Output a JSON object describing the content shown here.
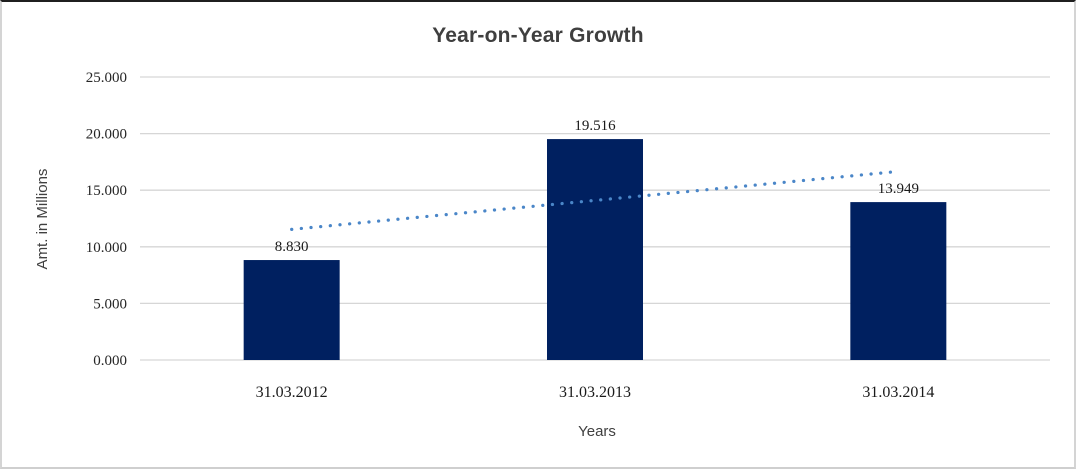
{
  "chart_data": {
    "type": "bar",
    "title": "Year-on-Year Growth",
    "xlabel": "Years",
    "ylabel": "Amt. in Millions",
    "categories": [
      "31.03.2012",
      "31.03.2013",
      "31.03.2014"
    ],
    "values": [
      8.83,
      19.516,
      13.949
    ],
    "data_labels": [
      "8.830",
      "19.516",
      "13.949"
    ],
    "ylim": [
      0,
      25
    ],
    "y_ticks": [
      0,
      5,
      10,
      15,
      20,
      25
    ],
    "y_tick_labels": [
      "0.000",
      "5.000",
      "10.000",
      "15.000",
      "20.000",
      "25.000"
    ],
    "grid": true,
    "legend": false,
    "trendline": {
      "type": "linear",
      "style": "dotted",
      "start_value": 11.54,
      "end_value": 16.66
    },
    "colors": {
      "bar": "#002060",
      "gridline": "#d6d6d6",
      "axis_line": "#d6d6d6",
      "trendline": "#4a86c8",
      "title_text": "#3f3f3f",
      "axis_title_text": "#404040",
      "tick_text": "#262626"
    }
  }
}
